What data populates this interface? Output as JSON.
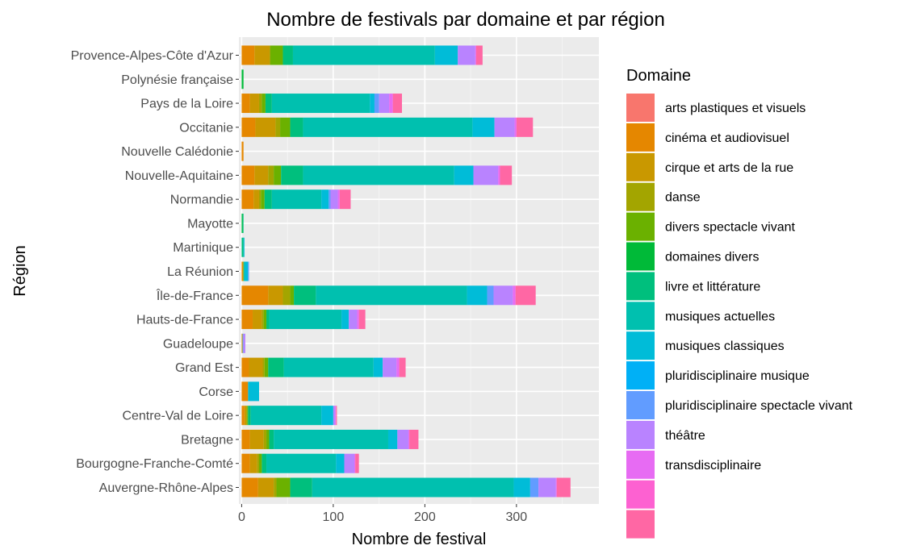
{
  "chart_data": {
    "type": "bar",
    "orientation": "horizontal",
    "stacked": true,
    "title": "Nombre de festivals par domaine et par région",
    "xlabel": "Nombre de festival",
    "ylabel": "Région",
    "xlim": [
      -3,
      390
    ],
    "xticks": [
      0,
      100,
      200,
      300
    ],
    "grid": true,
    "legend": {
      "title": "Domaine",
      "position": "right"
    },
    "categories": [
      "Provence-Alpes-Côte d'Azur",
      "Polynésie française",
      "Pays de la Loire",
      "Occitanie",
      "Nouvelle Calédonie",
      "Nouvelle-Aquitaine",
      "Normandie",
      "Mayotte",
      "Martinique",
      "La Réunion",
      "Île-de-France",
      "Hauts-de-France",
      "Guadeloupe",
      "Grand Est",
      "Corse",
      "Centre-Val de Loire",
      "Bretagne",
      "Bourgogne-Franche-Comté",
      "Auvergne-Rhône-Alpes"
    ],
    "series": [
      {
        "name": "arts plastiques et visuels",
        "color": "#F8766D",
        "values": [
          0,
          0,
          0,
          0,
          0,
          0,
          0,
          0,
          0,
          0,
          0,
          0,
          0,
          0,
          0,
          0,
          0,
          0,
          0
        ]
      },
      {
        "name": "cinéma et audiovisuel",
        "color": "#E58700",
        "values": [
          14,
          0,
          9,
          15,
          2,
          14,
          13,
          0,
          0,
          1,
          29,
          12,
          0,
          8,
          7,
          3,
          9,
          9,
          18
        ]
      },
      {
        "name": "cirque et arts de la rue",
        "color": "#C99800",
        "values": [
          17,
          0,
          10,
          22,
          0,
          15,
          6,
          0,
          0,
          1,
          16,
          10,
          1,
          15,
          0,
          2,
          15,
          8,
          17
        ]
      },
      {
        "name": "danse",
        "color": "#A3A500",
        "values": [
          0,
          0,
          3,
          5,
          0,
          6,
          2,
          0,
          0,
          0,
          8,
          2,
          0,
          2,
          0,
          1,
          3,
          2,
          3
        ]
      },
      {
        "name": "divers spectacle vivant",
        "color": "#6BB100",
        "values": [
          14,
          0,
          4,
          11,
          0,
          8,
          4,
          0,
          0,
          0,
          4,
          3,
          0,
          4,
          0,
          1,
          3,
          3,
          15
        ]
      },
      {
        "name": "domaines divers",
        "color": "#00BA38",
        "values": [
          0,
          2,
          0,
          0,
          0,
          0,
          0,
          1,
          0,
          0,
          0,
          0,
          0,
          0,
          0,
          0,
          0,
          0,
          0
        ]
      },
      {
        "name": "livre et littérature",
        "color": "#00BF7D",
        "values": [
          11,
          0,
          7,
          14,
          0,
          24,
          8,
          1,
          2,
          1,
          24,
          3,
          0,
          17,
          0,
          3,
          5,
          5,
          24
        ]
      },
      {
        "name": "musiques actuelles",
        "color": "#00C0AF",
        "values": [
          155,
          0,
          107,
          185,
          0,
          165,
          54,
          0,
          0,
          0,
          165,
          79,
          0,
          98,
          0,
          77,
          125,
          76,
          220
        ]
      },
      {
        "name": "musiques classiques",
        "color": "#00BCD8",
        "values": [
          25,
          0,
          5,
          24,
          0,
          21,
          8,
          0,
          1,
          4,
          22,
          8,
          0,
          10,
          12,
          13,
          10,
          9,
          18
        ]
      },
      {
        "name": "pluridisciplinaire musique",
        "color": "#00B0F6",
        "values": [
          0,
          0,
          0,
          0,
          0,
          0,
          0,
          0,
          0,
          0,
          0,
          0,
          0,
          0,
          0,
          0,
          0,
          0,
          0
        ]
      },
      {
        "name": "pluridisciplinaire spectacle vivant",
        "color": "#619CFF",
        "values": [
          0,
          0,
          5,
          0,
          0,
          0,
          2,
          0,
          0,
          1,
          7,
          0,
          1,
          0,
          0,
          0,
          0,
          0,
          9
        ]
      },
      {
        "name": "théâtre",
        "color": "#B983FF",
        "values": [
          19,
          0,
          11,
          22,
          0,
          27,
          8,
          0,
          0,
          0,
          21,
          9,
          2,
          15,
          0,
          2,
          12,
          11,
          19
        ]
      },
      {
        "name": "transdisciplinaire",
        "color": "#E76BF3",
        "values": [
          1,
          0,
          4,
          2,
          0,
          2,
          2,
          0,
          0,
          0,
          3,
          2,
          0,
          3,
          0,
          1,
          1,
          1,
          1
        ]
      },
      {
        "name": "",
        "color": "#FD61D1",
        "values": [
          0,
          0,
          0,
          0,
          0,
          0,
          0,
          0,
          0,
          0,
          0,
          0,
          0,
          0,
          0,
          0,
          0,
          0,
          0
        ]
      },
      {
        "name": "",
        "color": "#FF67A4",
        "values": [
          7,
          0,
          10,
          18,
          0,
          13,
          12,
          0,
          0,
          0,
          22,
          7,
          0,
          7,
          0,
          1,
          10,
          4,
          15
        ]
      }
    ]
  }
}
